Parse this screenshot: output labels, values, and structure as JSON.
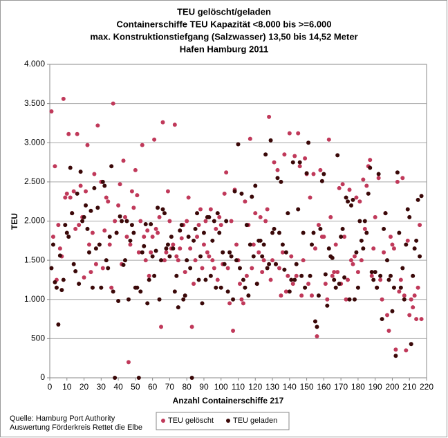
{
  "chart_data": {
    "type": "scatter",
    "title": [
      "TEU gelöscht/geladen",
      "Containerschiffe TEU Kapazität <8.000 bis >=6.000",
      "max. Konstruktionstiefgang (Salzwasser) 13,50 bis 14,52 Meter",
      "Hafen Hamburg 2011"
    ],
    "xlabel": "Anzahl Containerschiffe 217",
    "ylabel": "TEU",
    "source": [
      "Quelle: Hamburg Port Authority",
      "Auswertung Förderkreis Rettet die Elbe"
    ],
    "xlim": [
      0,
      220
    ],
    "xticks": [
      0,
      10,
      20,
      30,
      40,
      50,
      60,
      70,
      80,
      90,
      100,
      110,
      120,
      130,
      140,
      150,
      160,
      170,
      180,
      190,
      200,
      210,
      220
    ],
    "ylim": [
      0,
      4000
    ],
    "yticks": [
      0,
      500,
      {
        "value": 1000,
        "label": "1.000"
      },
      {
        "value": 1500,
        "label": "1.500"
      },
      {
        "value": 2000,
        "label": "2.000"
      },
      {
        "value": 2500,
        "label": "2.500"
      },
      {
        "value": 3000,
        "label": "3.000"
      },
      {
        "value": 3500,
        "label": "3.500"
      },
      {
        "value": 4000,
        "label": "4.000"
      }
    ],
    "grid": true,
    "legend": "bottom",
    "x": [
      1,
      2,
      3,
      4,
      5,
      6,
      7,
      8,
      9,
      10,
      11,
      12,
      13,
      14,
      15,
      16,
      17,
      18,
      19,
      20,
      21,
      22,
      23,
      24,
      25,
      26,
      27,
      28,
      29,
      30,
      31,
      32,
      33,
      34,
      35,
      36,
      37,
      38,
      39,
      40,
      41,
      42,
      43,
      44,
      45,
      46,
      47,
      48,
      49,
      50,
      51,
      52,
      53,
      54,
      55,
      56,
      57,
      58,
      59,
      60,
      61,
      62,
      63,
      64,
      65,
      66,
      67,
      68,
      69,
      70,
      71,
      72,
      73,
      74,
      75,
      76,
      77,
      78,
      79,
      80,
      81,
      82,
      83,
      84,
      85,
      86,
      87,
      88,
      89,
      90,
      91,
      92,
      93,
      94,
      95,
      96,
      97,
      98,
      99,
      100,
      101,
      102,
      103,
      104,
      105,
      106,
      107,
      108,
      109,
      110,
      111,
      112,
      113,
      114,
      115,
      116,
      117,
      118,
      119,
      120,
      121,
      122,
      123,
      124,
      125,
      126,
      127,
      128,
      129,
      130,
      131,
      132,
      133,
      134,
      135,
      136,
      137,
      138,
      139,
      140,
      141,
      142,
      143,
      144,
      145,
      146,
      147,
      148,
      149,
      150,
      151,
      152,
      153,
      154,
      155,
      156,
      157,
      158,
      159,
      160,
      161,
      162,
      163,
      164,
      165,
      166,
      167,
      168,
      169,
      170,
      171,
      172,
      173,
      174,
      175,
      176,
      177,
      178,
      179,
      180,
      181,
      182,
      183,
      184,
      185,
      186,
      187,
      188,
      189,
      190,
      191,
      192,
      193,
      194,
      195,
      196,
      197,
      198,
      199,
      200,
      201,
      202,
      203,
      204,
      205,
      206,
      207,
      208,
      209,
      210,
      211,
      212,
      213,
      214,
      215,
      216,
      217
    ],
    "series": [
      {
        "name": "TEU gelöscht",
        "color": "#c0395a",
        "values": [
          3400,
          1800,
          2700,
          1250,
          1950,
          1650,
          1550,
          3560,
          2300,
          2350,
          3110,
          2300,
          2100,
          2380,
          1900,
          3110,
          1950,
          2450,
          2050,
          1280,
          2380,
          2970,
          1700,
          1350,
          1850,
          2600,
          1450,
          3220,
          1700,
          2500,
          1400,
          1880,
          2300,
          2250,
          1700,
          1150,
          3500,
          2000,
          1850,
          2200,
          2470,
          1450,
          2770,
          2050,
          1800,
          200,
          1700,
          2380,
          2170,
          2650,
          2330,
          1600,
          2000,
          2970,
          1800,
          1500,
          1880,
          1300,
          1600,
          1800,
          3040,
          1900,
          1850,
          2050,
          650,
          3260,
          1500,
          1600,
          2380,
          2000,
          1650,
          1700,
          3230,
          1550,
          1500,
          1650,
          1780,
          1950,
          1350,
          2000,
          2300,
          1650,
          650,
          1200,
          1500,
          1800,
          1950,
          2150,
          1400,
          1700,
          2000,
          1600,
          1550,
          2150,
          1500,
          1400,
          1900,
          1250,
          2050,
          1950,
          1450,
          2350,
          2620,
          1400,
          950,
          2000,
          600,
          2400,
          1700,
          1500,
          1200,
          1000,
          950,
          2250,
          1300,
          1950,
          3050,
          1400,
          1700,
          2100,
          1200,
          1600,
          2050,
          1350,
          1500,
          2000,
          2150,
          3330,
          1250,
          1500,
          2750,
          1450,
          2650,
          1400,
          1050,
          1600,
          2850,
          1100,
          1300,
          3120,
          1550,
          1200,
          2830,
          1300,
          3120,
          2700,
          1050,
          1500,
          2800,
          2600,
          1200,
          2300,
          1050,
          2600,
          1650,
          530,
          1950,
          2650,
          1800,
          1800,
          1200,
          1000,
          3040,
          2050,
          1300,
          1350,
          1700,
          1350,
          2420,
          1200,
          2470,
          1800,
          1000,
          1250,
          2400,
          1500,
          1450,
          1550,
          2300,
          1350,
          2250,
          1500,
          2530,
          1900,
          2450,
          2700,
          2780,
          1300,
          1650,
          2050,
          1150,
          2550,
          1250,
          1000,
          1600,
          2100,
          800,
          600,
          1800,
          1700,
          1650,
          360,
          2500,
          1100,
          1250,
          2550,
          1050,
          350,
          1750,
          800,
          1000,
          900,
          1050,
          750,
          1150,
          1950,
          750
        ]
      },
      {
        "name": "TEU geladen",
        "color": "#3a0808",
        "values": [
          1400,
          1700,
          1220,
          1150,
          680,
          1560,
          1120,
          1250,
          1950,
          1850,
          1800,
          2680,
          2100,
          1450,
          1360,
          2350,
          1200,
          2630,
          2000,
          2050,
          2200,
          1900,
          1600,
          2130,
          1150,
          2420,
          1650,
          2170,
          1700,
          1150,
          2500,
          2450,
          1500,
          1400,
          1800,
          2700,
          1100,
          0,
          1850,
          980,
          2060,
          2000,
          1440,
          1500,
          2000,
          1000,
          1750,
          1950,
          1850,
          1150,
          1150,
          0,
          1100,
          1600,
          1680,
          1960,
          950,
          1250,
          1960,
          1550,
          1300,
          1620,
          2170,
          1000,
          1500,
          2150,
          2100,
          1650,
          1700,
          1550,
          1800,
          1650,
          1100,
          1300,
          900,
          1880,
          1950,
          1000,
          1050,
          1500,
          1800,
          1400,
          0,
          1750,
          1900,
          2100,
          1250,
          1550,
          950,
          1850,
          1250,
          2050,
          2050,
          1300,
          1750,
          2000,
          1150,
          2100,
          1850,
          1150,
          1600,
          1450,
          2000,
          1100,
          1600,
          1550,
          1000,
          2380,
          1500,
          2980,
          1400,
          2350,
          1250,
          1150,
          1950,
          1050,
          1700,
          2310,
          1550,
          2450,
          1200,
          1750,
          1750,
          1550,
          1700,
          2850,
          1400,
          1450,
          3030,
          1850,
          1900,
          1450,
          2550,
          1850,
          2500,
          1700,
          1380,
          1600,
          2100,
          1100,
          1250,
          2750,
          1250,
          1450,
          2150,
          2750,
          1300,
          1850,
          1150,
          2610,
          3000,
          1300,
          1700,
          1850,
          720,
          650,
          1050,
          1900,
          2510,
          2600,
          1320,
          920,
          1650,
          1550,
          1530,
          1250,
          1150,
          2840,
          1200,
          1800,
          1900,
          1280,
          2300,
          2250,
          1000,
          2200,
          2270,
          1000,
          1600,
          1150,
          2000,
          1750,
          1650,
          2000,
          1850,
          2350,
          2680,
          1350,
          1250,
          1350,
          1150,
          2600,
          1300,
          750,
          1900,
          2100,
          1500,
          1250,
          1300,
          850,
          1150,
          280,
          2620,
          1850,
          1150,
          1400,
          1000,
          1700,
          2150,
          2050,
          430,
          1300,
          1650,
          1750,
          2270,
          1550,
          2320
        ]
      }
    ]
  }
}
